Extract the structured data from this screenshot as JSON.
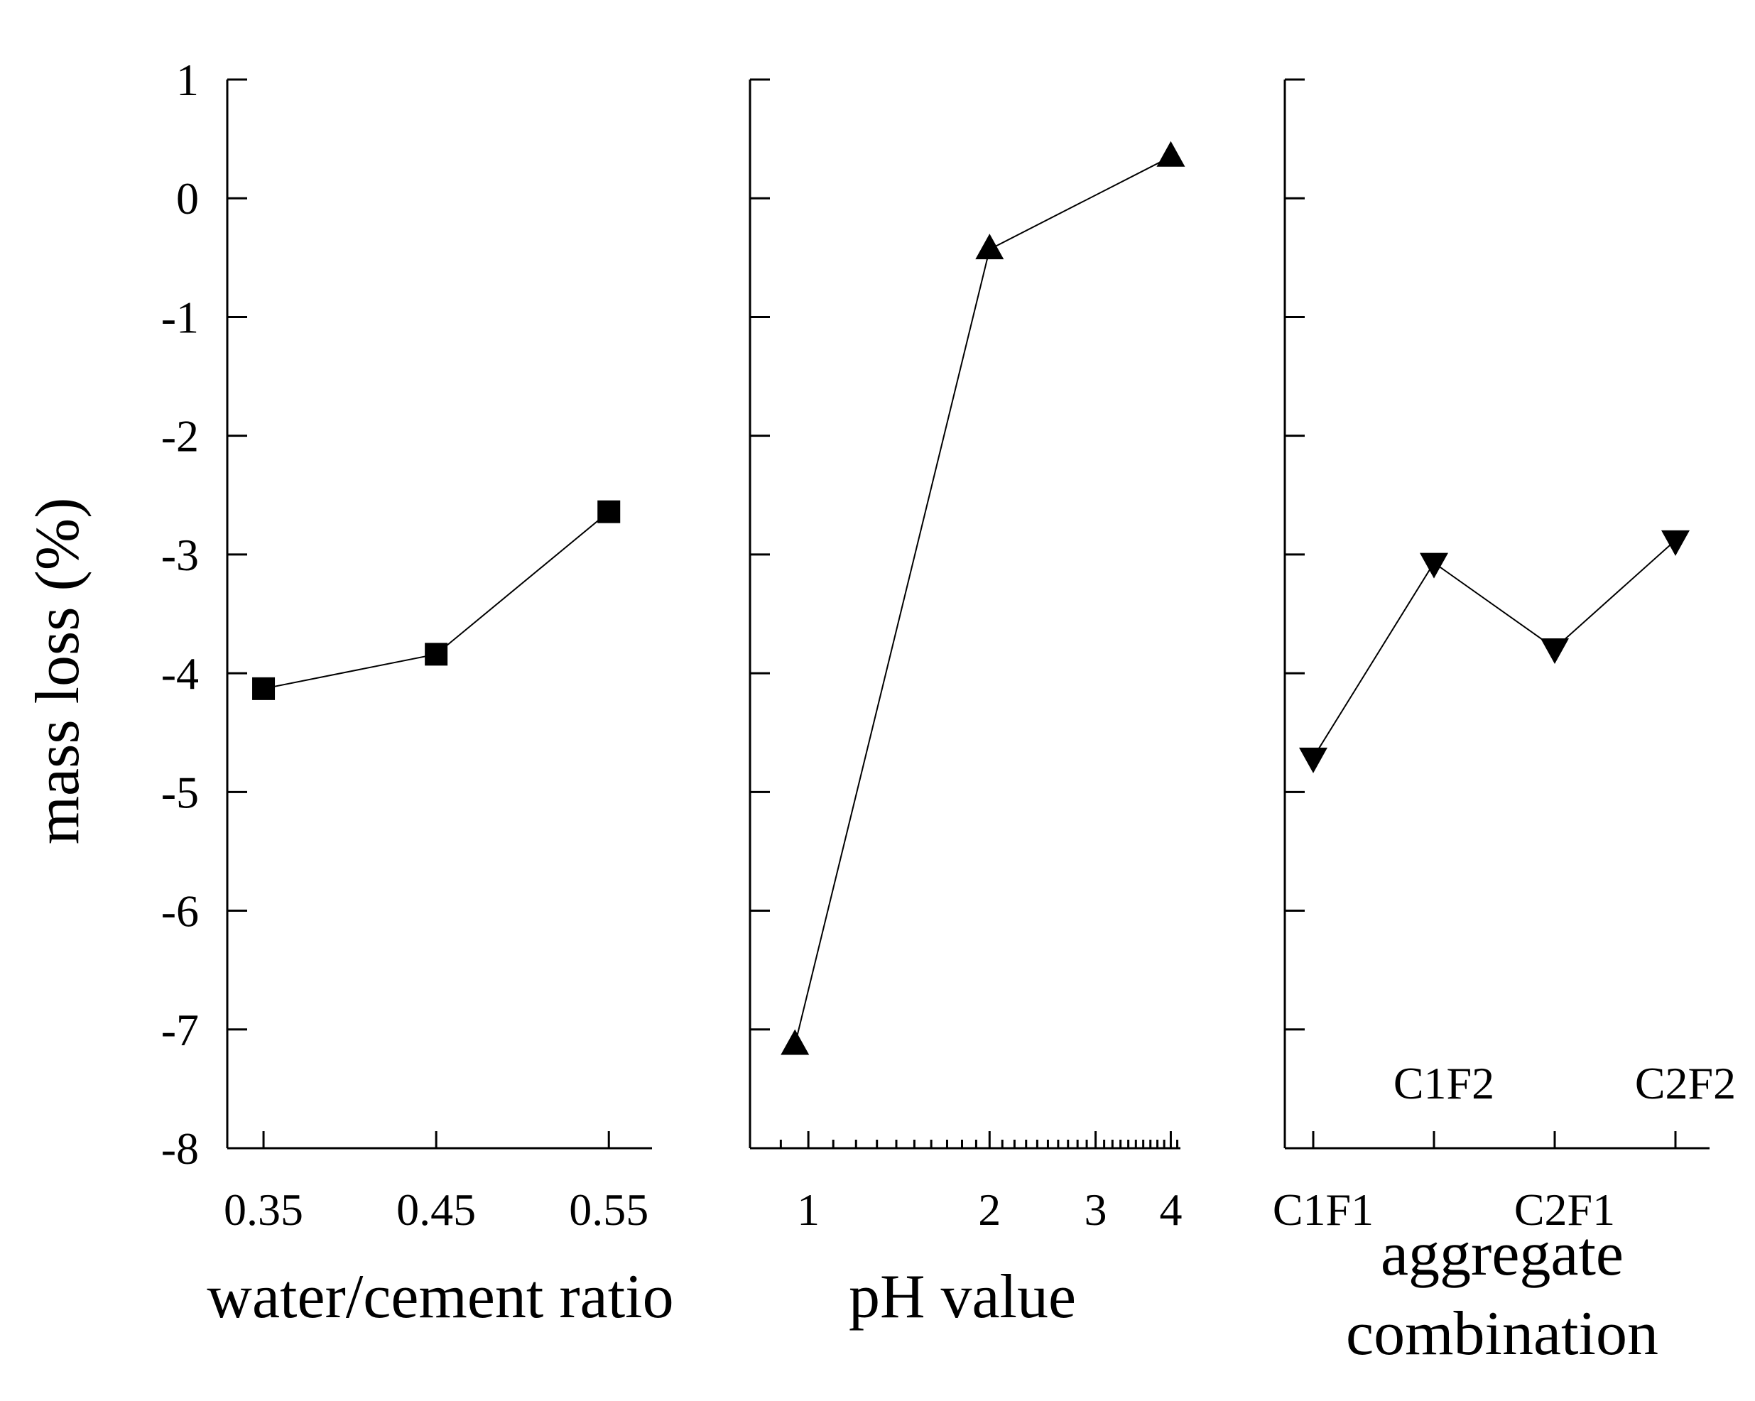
{
  "chart_data": [
    {
      "type": "line",
      "panel": "water-cement",
      "ylabel": "mass loss (%)",
      "xlabel": "water/cement ratio",
      "ylim": [
        -8,
        1
      ],
      "yticks": [
        1,
        0,
        -1,
        -2,
        -3,
        -4,
        -5,
        -6,
        -7,
        -8
      ],
      "ytick_labels": [
        "1",
        "0",
        "-1",
        "-2",
        "-3",
        "-4",
        "-5",
        "-6",
        "-7",
        "-8"
      ],
      "xscale": "linear",
      "xlim": [
        0.329,
        0.575
      ],
      "xticks": [
        0.35,
        0.45,
        0.55
      ],
      "xtick_labels": [
        "0.35",
        "0.45",
        "0.55"
      ],
      "marker": "square",
      "x": [
        0.35,
        0.45,
        0.55
      ],
      "y": [
        -4.13,
        -3.84,
        -2.64
      ]
    },
    {
      "type": "line",
      "panel": "ph",
      "xlabel": "pH value",
      "ylim": [
        -8,
        1
      ],
      "xscale": "log",
      "xlim": [
        0.8,
        4.15
      ],
      "xticks": [
        1,
        2,
        3,
        4
      ],
      "xtick_labels": [
        "1",
        "2",
        "3",
        "4"
      ],
      "marker": "triangle-up",
      "x": [
        0.95,
        2,
        4
      ],
      "y": [
        -7.13,
        -0.43,
        0.35
      ]
    },
    {
      "type": "line",
      "panel": "aggregate",
      "xlabel": [
        "aggregate",
        "combination"
      ],
      "ylim": [
        -8,
        1
      ],
      "xscale": "categorical",
      "categories": [
        "C1F1",
        "C1F2",
        "C2F1",
        "C2F2"
      ],
      "category_label_rows": [
        "lower",
        "upper",
        "lower",
        "upper"
      ],
      "marker": "triangle-down",
      "values": [
        -4.71,
        -3.07,
        -3.79,
        -2.88
      ]
    }
  ]
}
